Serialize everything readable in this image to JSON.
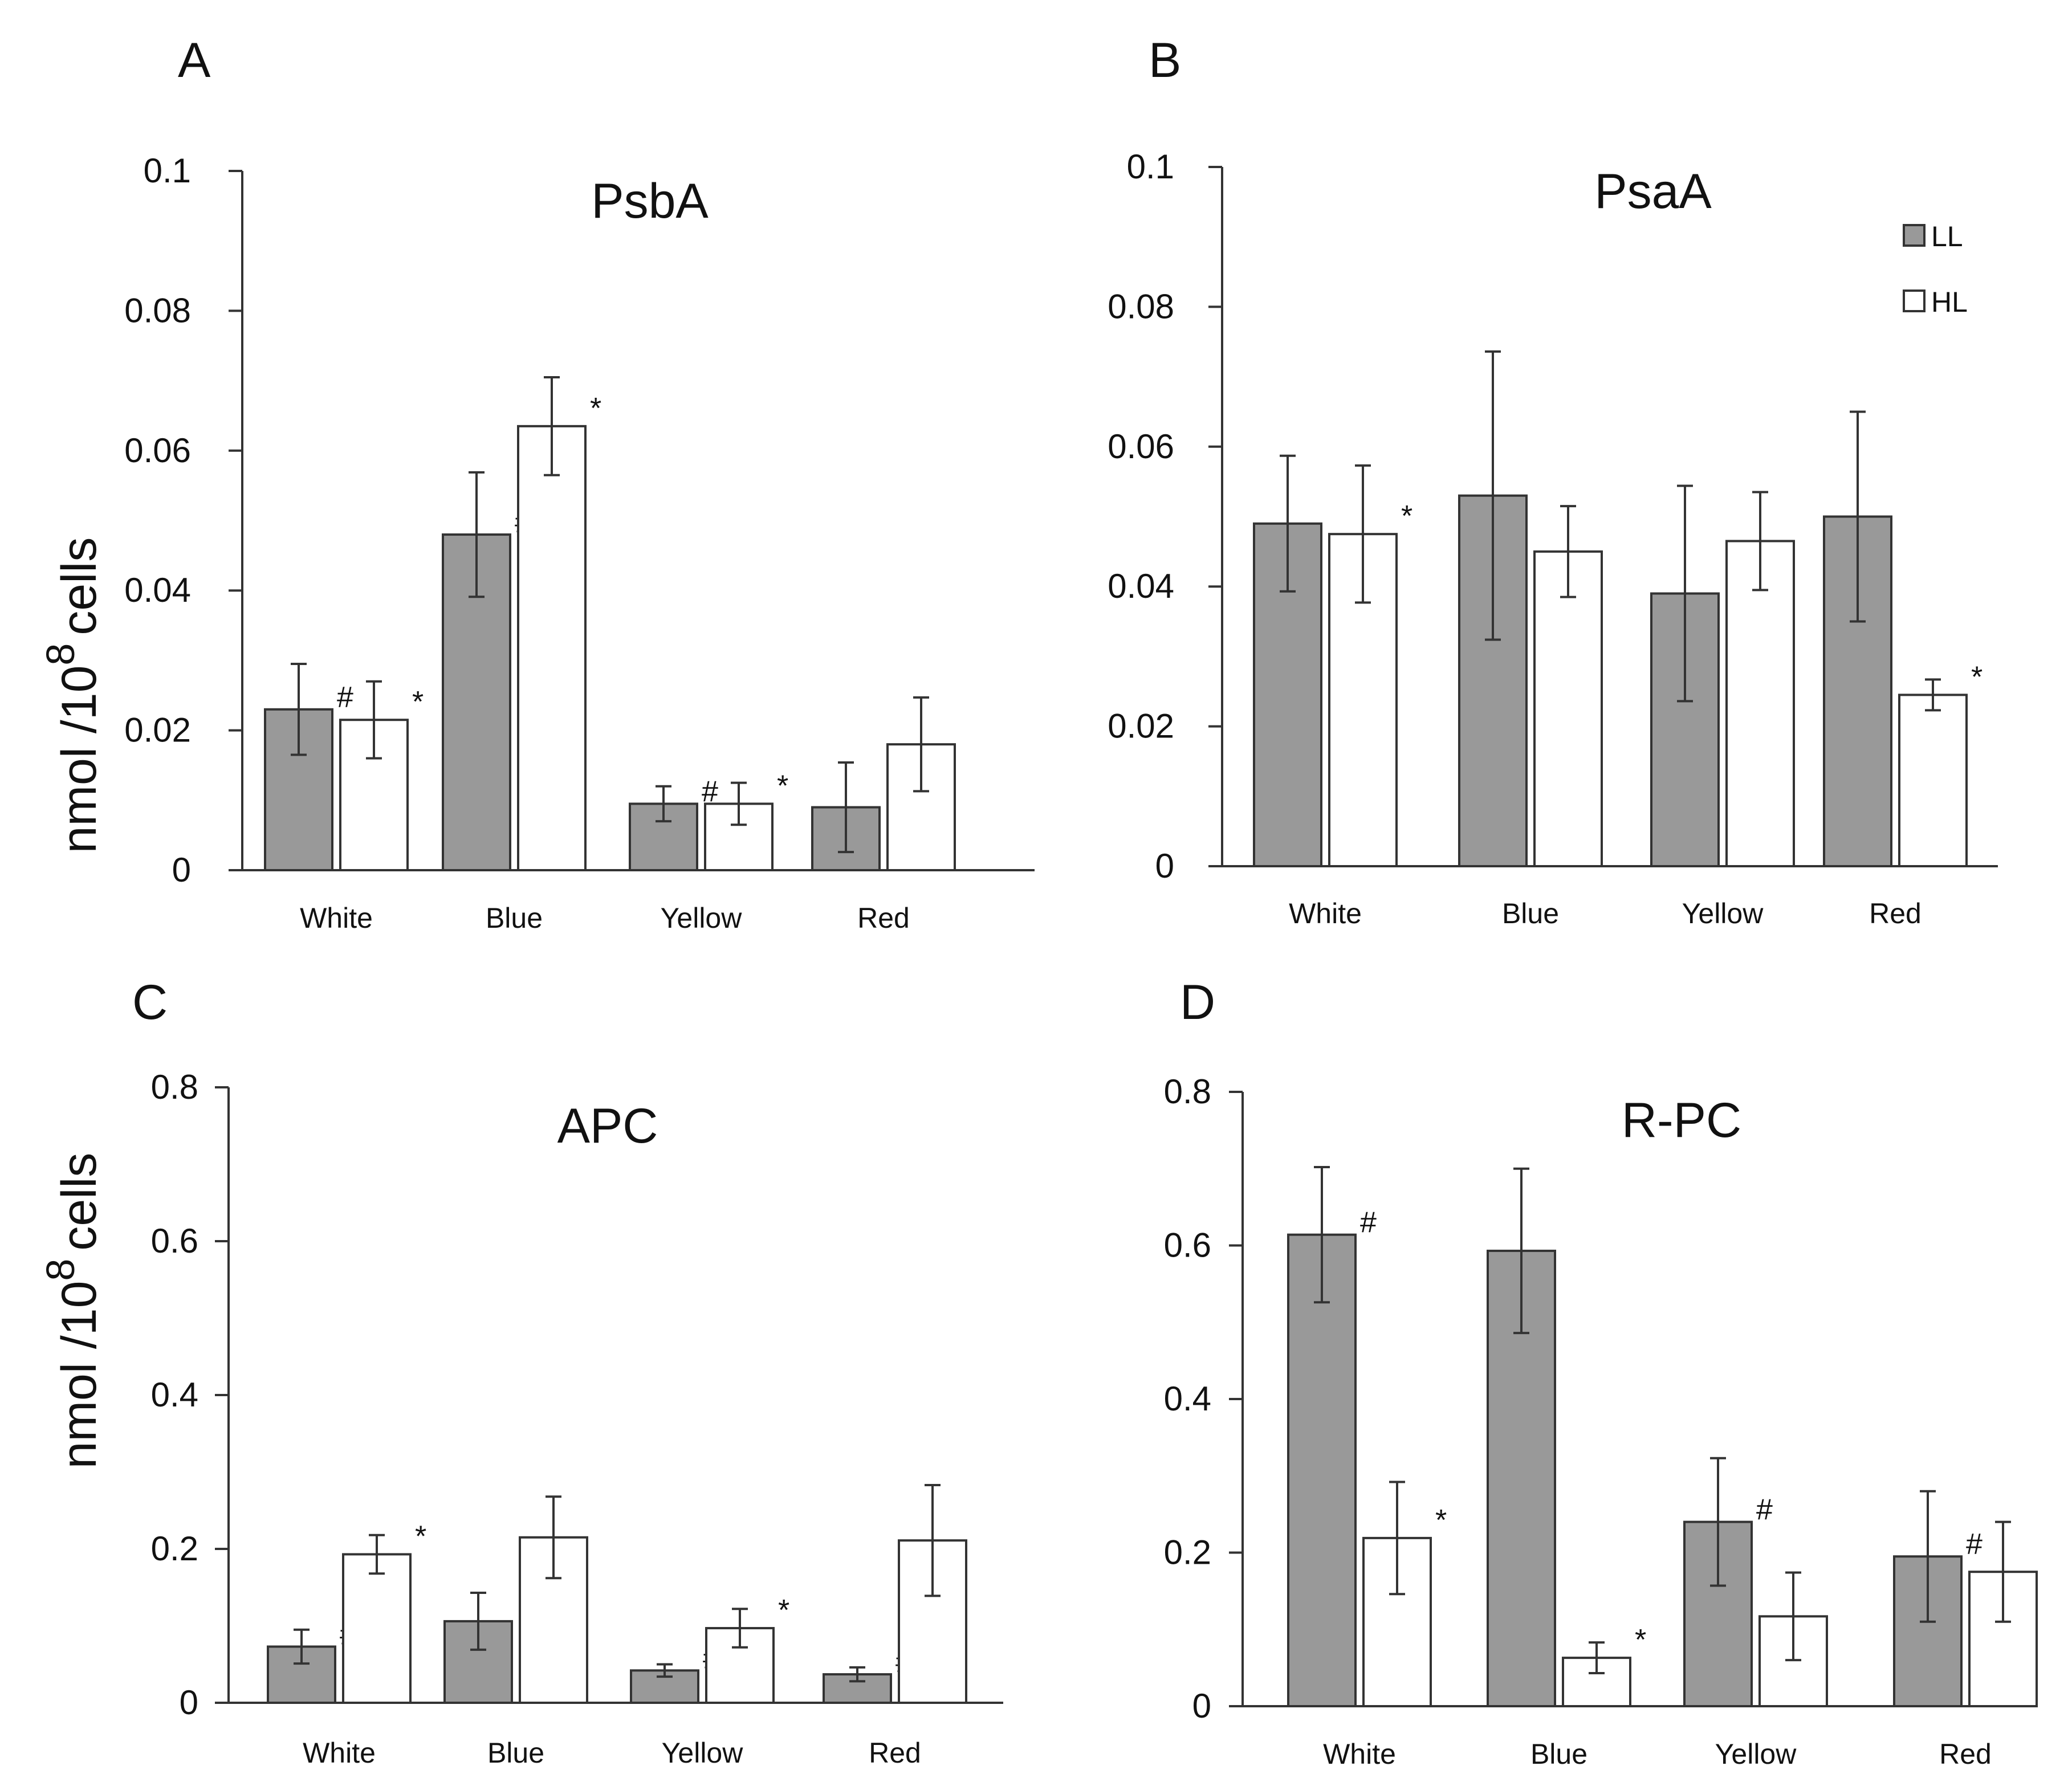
{
  "y_axis_label_prefix": "nmol /10",
  "y_axis_label_sup": "8",
  "y_axis_label_suffix": "cells",
  "legend": [
    {
      "label": "LL",
      "color": "#999999"
    },
    {
      "label": "HL",
      "color": "#ffffff"
    }
  ],
  "colors": {
    "LL": "#999999",
    "HL": "#ffffff",
    "stroke": "#333333"
  },
  "chart_data": [
    {
      "panel": "A",
      "type": "bar",
      "title": "PsbA",
      "categories": [
        "White",
        "Blue",
        "Yellow",
        "Red"
      ],
      "ylim": [
        0,
        0.1
      ],
      "yticks": [
        {
          "v": 0,
          "label": "0"
        },
        {
          "v": 0.02,
          "label": "0.02"
        },
        {
          "v": 0.04,
          "label": "0.04"
        },
        {
          "v": 0.06,
          "label": "0.06"
        },
        {
          "v": 0.08,
          "label": "0.08"
        },
        {
          "v": 0.1,
          "label": "0.1"
        }
      ],
      "series": [
        {
          "name": "LL",
          "values": [
            0.023,
            0.048,
            0.0095,
            0.009
          ],
          "errors": [
            0.0065,
            0.0089,
            0.0025,
            0.0064
          ],
          "marks": [
            "#",
            "#",
            "#",
            ""
          ]
        },
        {
          "name": "HL",
          "values": [
            0.0215,
            0.0635,
            0.0095,
            0.018
          ],
          "errors": [
            0.0055,
            0.007,
            0.003,
            0.0067
          ],
          "marks": [
            "*",
            "*",
            "*",
            ""
          ]
        }
      ]
    },
    {
      "panel": "B",
      "type": "bar",
      "title": "PsaA",
      "categories": [
        "White",
        "Blue",
        "Yellow",
        "Red"
      ],
      "ylim": [
        0,
        0.1
      ],
      "yticks": [
        {
          "v": 0,
          "label": "0"
        },
        {
          "v": 0.02,
          "label": "0.02"
        },
        {
          "v": 0.04,
          "label": "0.04"
        },
        {
          "v": 0.06,
          "label": "0.06"
        },
        {
          "v": 0.08,
          "label": "0.08"
        },
        {
          "v": 0.1,
          "label": "0.1"
        }
      ],
      "legend_position": "top-right",
      "series": [
        {
          "name": "LL",
          "values": [
            0.049,
            0.053,
            0.039,
            0.05
          ],
          "errors": [
            0.0097,
            0.0206,
            0.0154,
            0.015
          ],
          "marks": [
            "",
            "",
            "",
            ""
          ]
        },
        {
          "name": "HL",
          "values": [
            0.0475,
            0.045,
            0.0465,
            0.0245
          ],
          "errors": [
            0.0098,
            0.0065,
            0.007,
            0.0022
          ],
          "marks": [
            "*",
            "",
            "",
            "*"
          ]
        }
      ]
    },
    {
      "panel": "C",
      "type": "bar",
      "title": "APC",
      "categories": [
        "White",
        "Blue",
        "Yellow",
        "Red"
      ],
      "ylim": [
        0,
        0.8
      ],
      "yticks": [
        {
          "v": 0,
          "label": "0"
        },
        {
          "v": 0.2,
          "label": "0.2"
        },
        {
          "v": 0.4,
          "label": "0.4"
        },
        {
          "v": 0.6,
          "label": "0.6"
        },
        {
          "v": 0.8,
          "label": "0.8"
        }
      ],
      "series": [
        {
          "name": "LL",
          "values": [
            0.073,
            0.106,
            0.042,
            0.037
          ],
          "errors": [
            0.022,
            0.037,
            0.008,
            0.009
          ],
          "marks": [
            "#",
            "",
            "#",
            "#"
          ]
        },
        {
          "name": "HL",
          "values": [
            0.193,
            0.215,
            0.097,
            0.211
          ],
          "errors": [
            0.025,
            0.053,
            0.025,
            0.072
          ],
          "marks": [
            "*",
            "",
            "*",
            ""
          ]
        }
      ]
    },
    {
      "panel": "D",
      "type": "bar",
      "title": "R-PC",
      "categories": [
        "White",
        "Blue",
        "Yellow",
        "Red"
      ],
      "ylim": [
        0,
        0.8
      ],
      "yticks": [
        {
          "v": 0,
          "label": "0"
        },
        {
          "v": 0.2,
          "label": "0.2"
        },
        {
          "v": 0.4,
          "label": "0.4"
        },
        {
          "v": 0.6,
          "label": "0.6"
        },
        {
          "v": 0.8,
          "label": "0.8"
        }
      ],
      "series": [
        {
          "name": "LL",
          "values": [
            0.614,
            0.593,
            0.24,
            0.195
          ],
          "errors": [
            0.088,
            0.107,
            0.083,
            0.085
          ],
          "marks": [
            "#",
            "",
            "#",
            "#"
          ]
        },
        {
          "name": "HL",
          "values": [
            0.219,
            0.063,
            0.117,
            0.175
          ],
          "errors": [
            0.073,
            0.02,
            0.057,
            0.065
          ],
          "marks": [
            "*",
            "*",
            "",
            ""
          ]
        }
      ]
    }
  ]
}
